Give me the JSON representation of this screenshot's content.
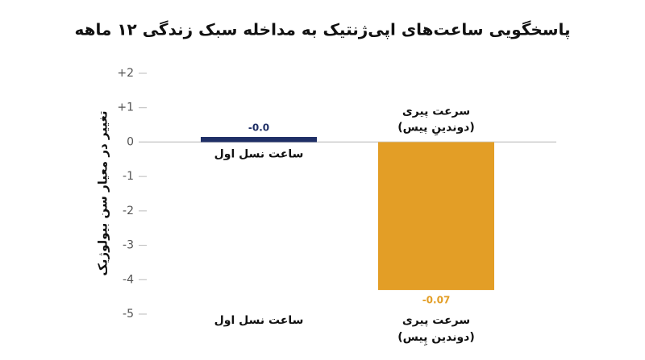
{
  "chart_data": {
    "type": "bar",
    "title": "پاسخگویی ساعت‌های اپی‌ژنتیک به مداخله سبک زندگی ۱۲ ماهه",
    "y_label": "تغییر در معیار سن بیولوژیک",
    "categories": [
      [
        "ساعت نسل اول"
      ],
      [
        "سرعت پیری",
        "(دوندین پِیس)"
      ]
    ],
    "values": [
      0.15,
      -4.3
    ],
    "colors": [
      "#1f2f66",
      "#e39e26"
    ],
    "annotations": [
      "-0.0",
      "-0.07"
    ],
    "bar_labels": [
      [
        "ساعت نسل اول"
      ],
      [
        "سرعت پیری",
        "(دوندینِ پیس)"
      ]
    ],
    "ylim": [
      -5,
      2
    ],
    "yticks": [
      {
        "value": 2,
        "label": "+2"
      },
      {
        "value": 1,
        "label": "+1"
      },
      0,
      -1,
      -2,
      -3,
      -4,
      -5
    ]
  }
}
